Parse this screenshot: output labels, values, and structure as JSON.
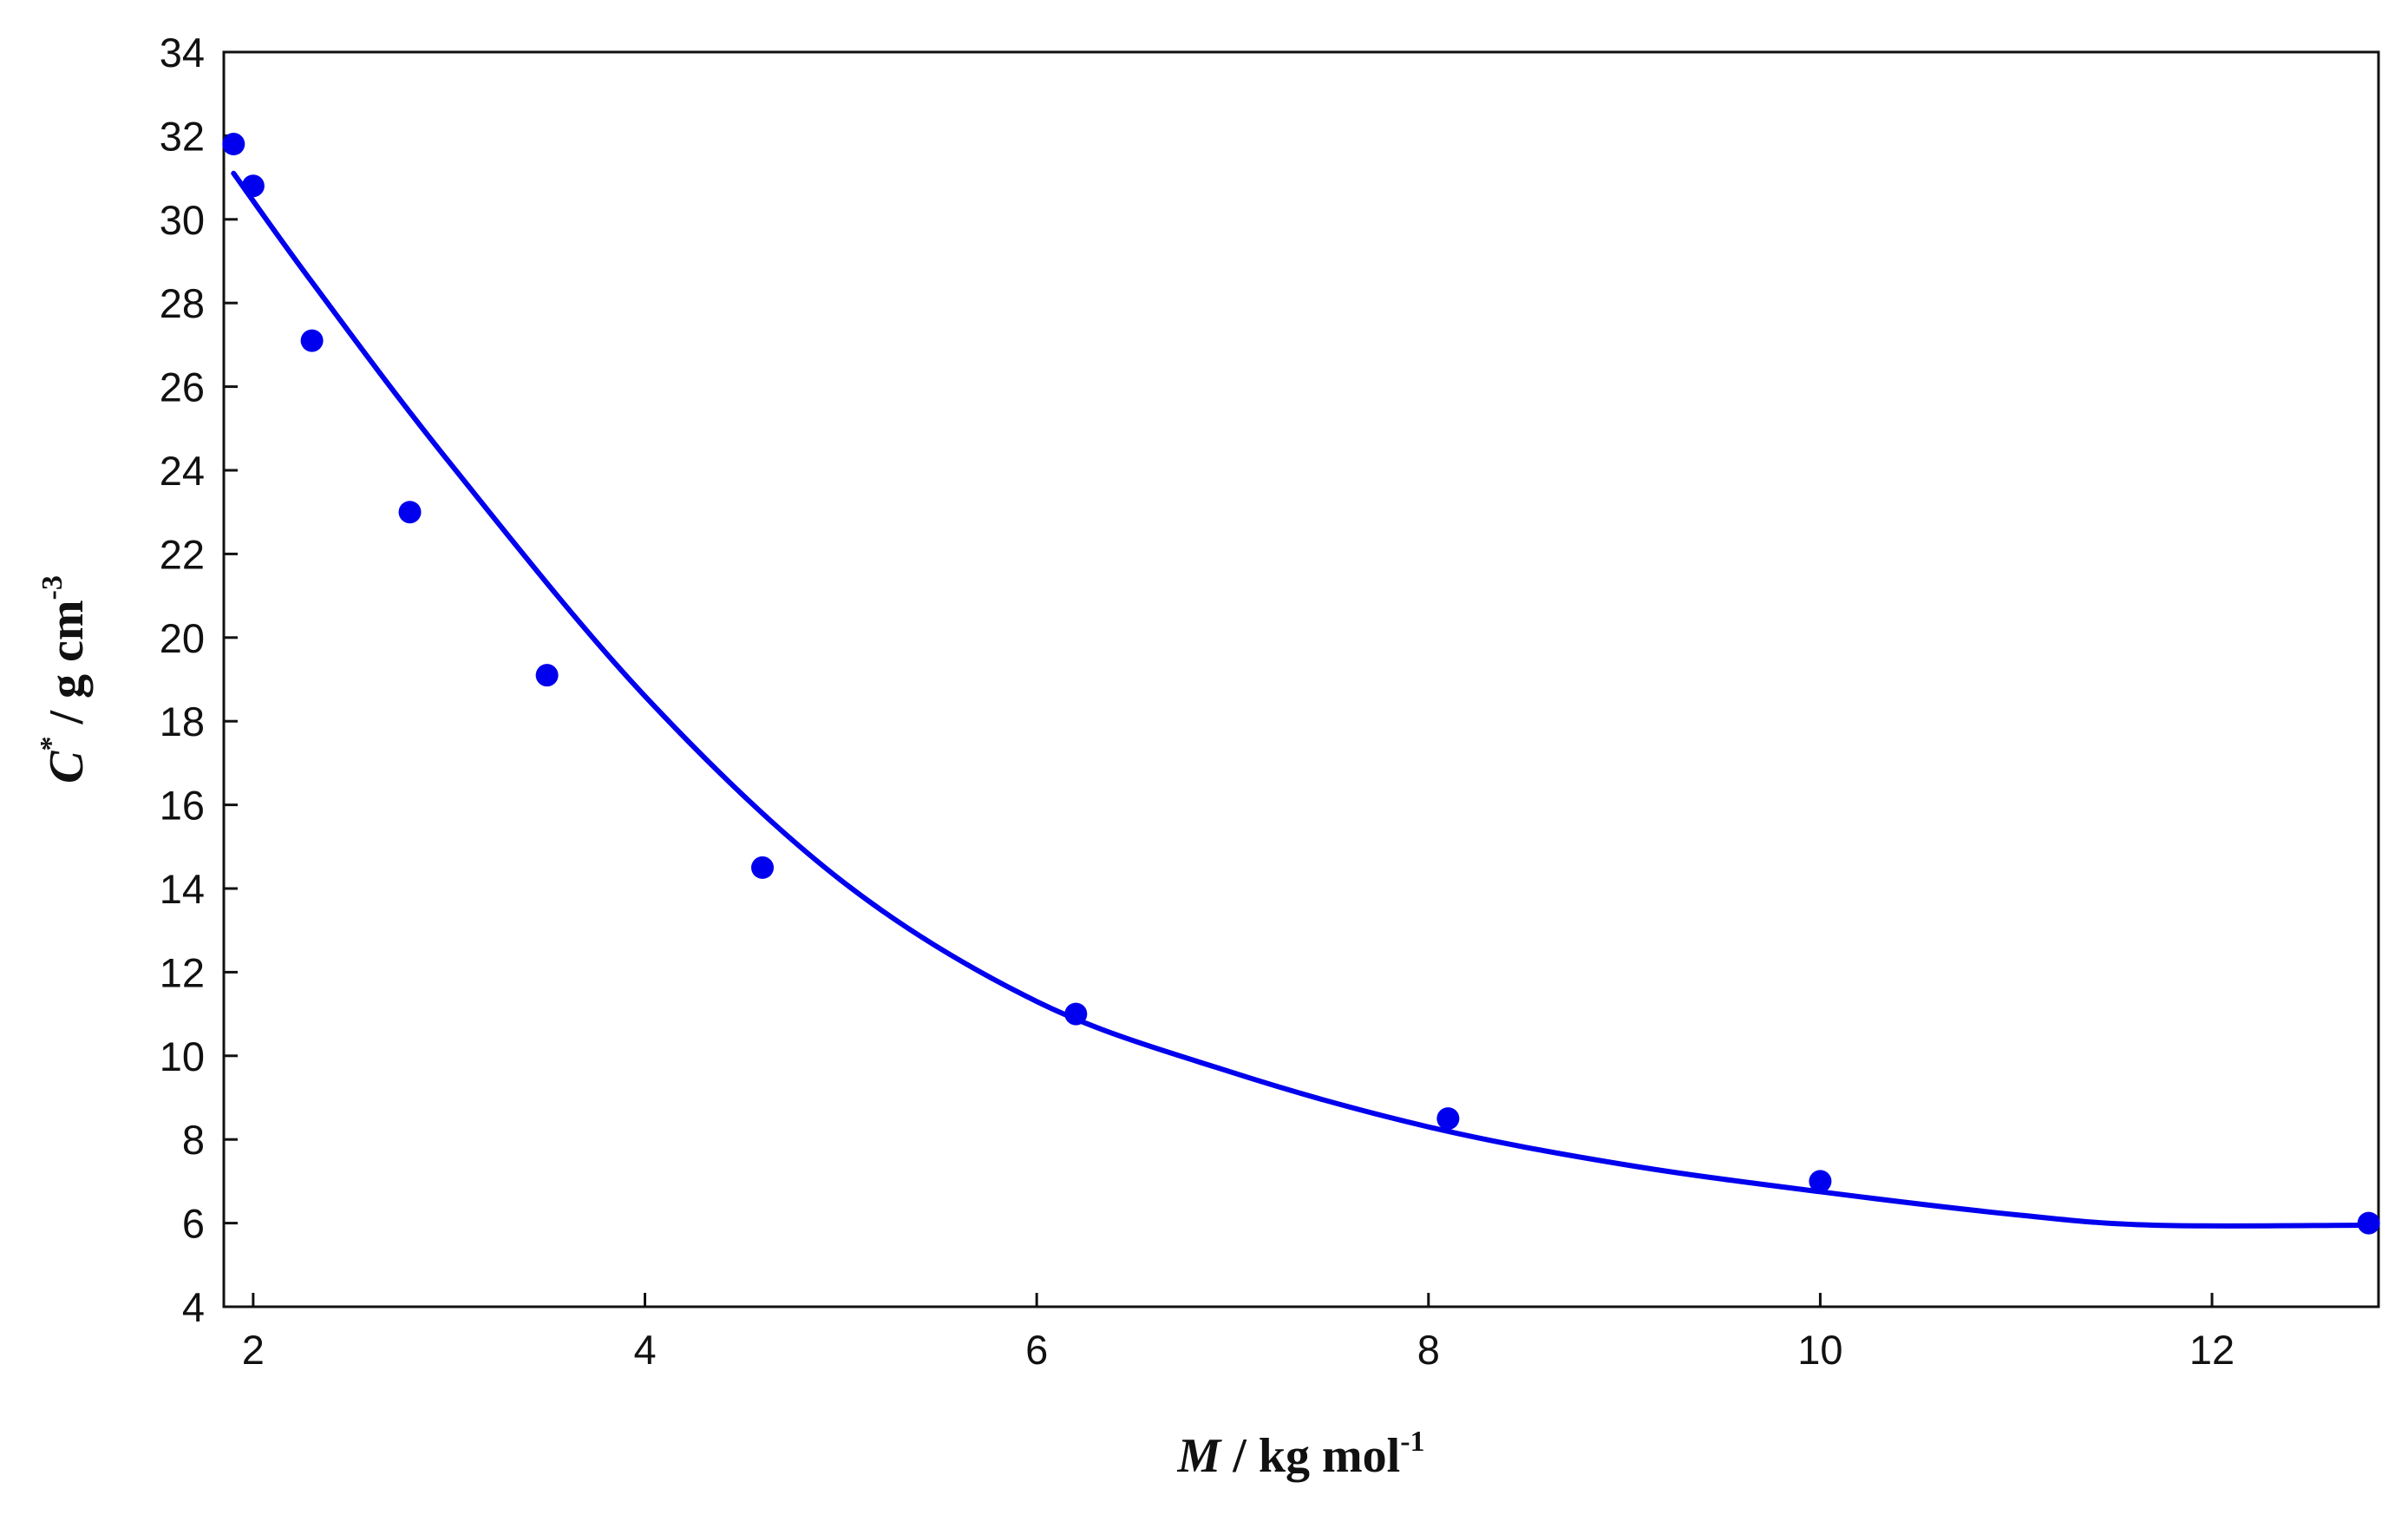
{
  "chart_data": {
    "type": "scatter",
    "title": "",
    "xlabel": {
      "symbol": "M",
      "unit": " / kg mol",
      "exponent": "-1"
    },
    "ylabel": {
      "symbol": "C",
      "symbol_sup": "*",
      "unit": " / g cm",
      "exponent": "-3"
    },
    "xlim": [
      1.85,
      12.85
    ],
    "ylim": [
      4,
      34
    ],
    "xticks": [
      "2",
      "4",
      "6",
      "8",
      "10",
      "12"
    ],
    "yticks": [
      "4",
      "6",
      "8",
      "10",
      "12",
      "14",
      "16",
      "18",
      "20",
      "22",
      "24",
      "26",
      "28",
      "30",
      "32",
      "34"
    ],
    "grid": false,
    "legend": "none",
    "series": [
      {
        "kind": "points",
        "color": "#0000ee",
        "x": [
          1.9,
          2.0,
          2.3,
          2.8,
          3.5,
          4.6,
          6.2,
          8.1,
          10.0,
          12.8
        ],
        "y": [
          31.8,
          30.8,
          27.1,
          23.0,
          19.1,
          14.5,
          11.0,
          8.5,
          7.0,
          6.0
        ]
      },
      {
        "kind": "fit-curve",
        "color": "#0000ee",
        "x": [
          1.9,
          2.3,
          3.0,
          4.0,
          5.0,
          6.0,
          7.0,
          8.0,
          9.0,
          10.0,
          11.0,
          11.7,
          12.8
        ],
        "y": [
          31.1,
          28.5,
          24.2,
          18.6,
          14.2,
          11.3,
          9.6,
          8.3,
          7.4,
          6.75,
          6.2,
          5.95,
          5.95
        ]
      }
    ]
  }
}
